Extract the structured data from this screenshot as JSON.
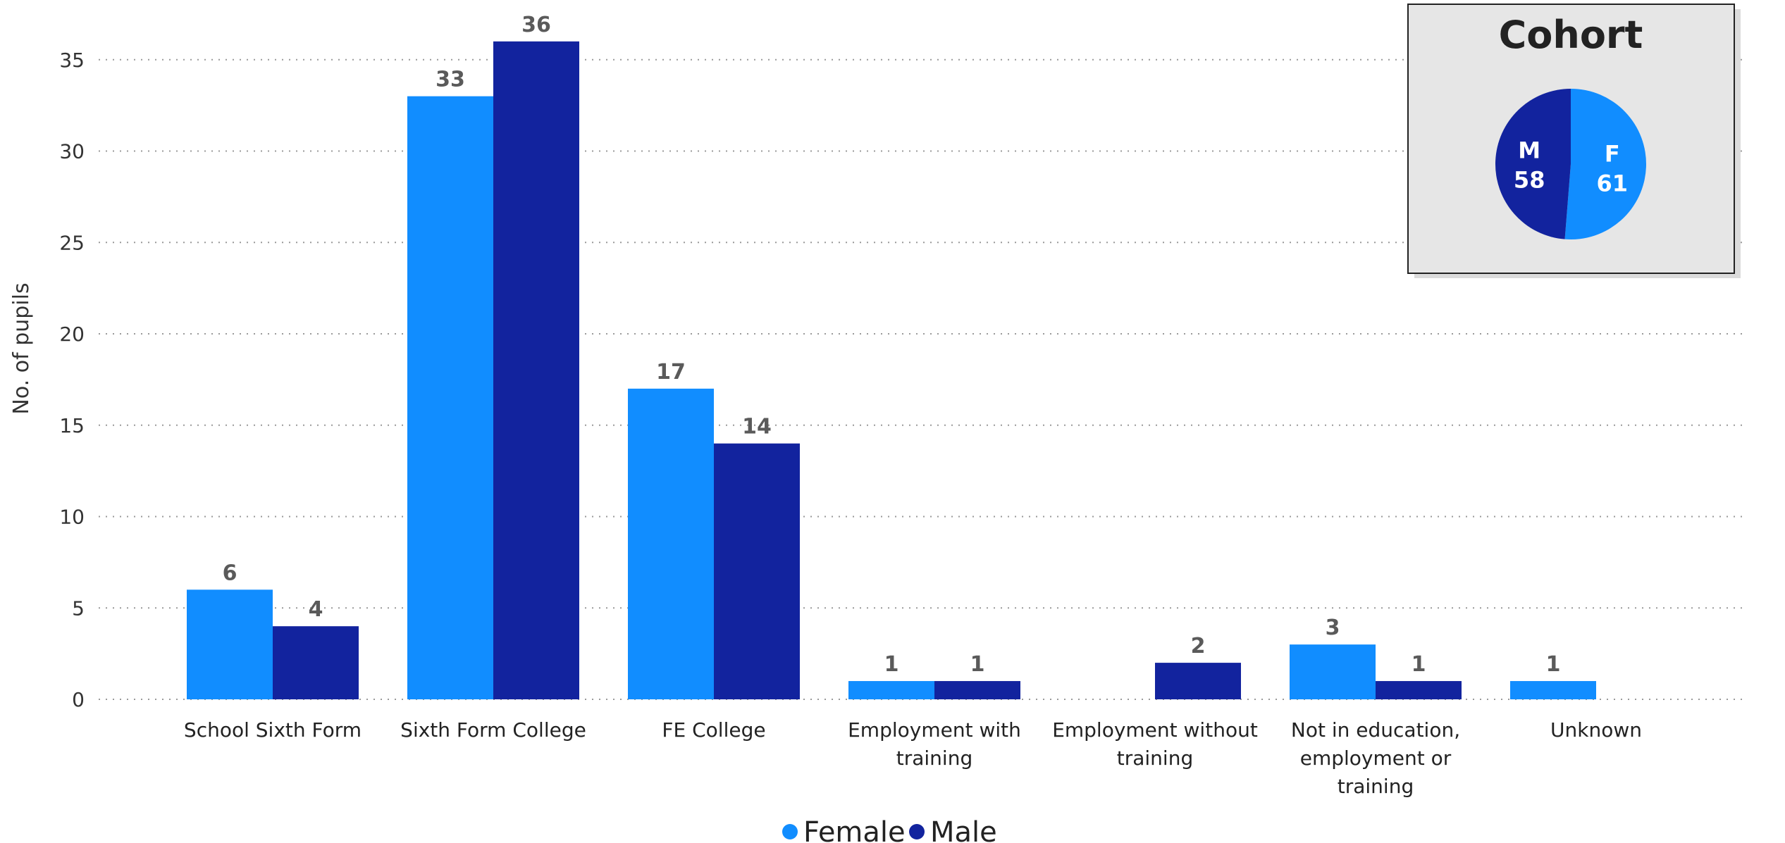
{
  "colors": {
    "female": "#118dff",
    "male": "#12239e"
  },
  "chart_data": [
    {
      "type": "bar",
      "title": "",
      "xlabel": "",
      "ylabel": "No. of pupils",
      "ylim": [
        0,
        36
      ],
      "yticks": [
        0,
        5,
        10,
        15,
        20,
        25,
        30,
        35
      ],
      "grid": true,
      "legend_position": "bottom-center",
      "categories": [
        [
          "School Sixth Form"
        ],
        [
          "Sixth Form College"
        ],
        [
          "FE College"
        ],
        [
          "Employment with",
          "training"
        ],
        [
          "Employment without",
          "training"
        ],
        [
          "Not in education,",
          "employment or",
          "training"
        ],
        [
          "Unknown"
        ]
      ],
      "series": [
        {
          "name": "Female",
          "values": [
            6,
            33,
            17,
            1,
            null,
            3,
            1
          ]
        },
        {
          "name": "Male",
          "values": [
            4,
            36,
            14,
            1,
            2,
            1,
            null
          ]
        }
      ]
    },
    {
      "type": "pie",
      "title": "Cohort",
      "slices": [
        {
          "label": "F",
          "value": 61
        },
        {
          "label": "M",
          "value": 58
        }
      ]
    }
  ]
}
